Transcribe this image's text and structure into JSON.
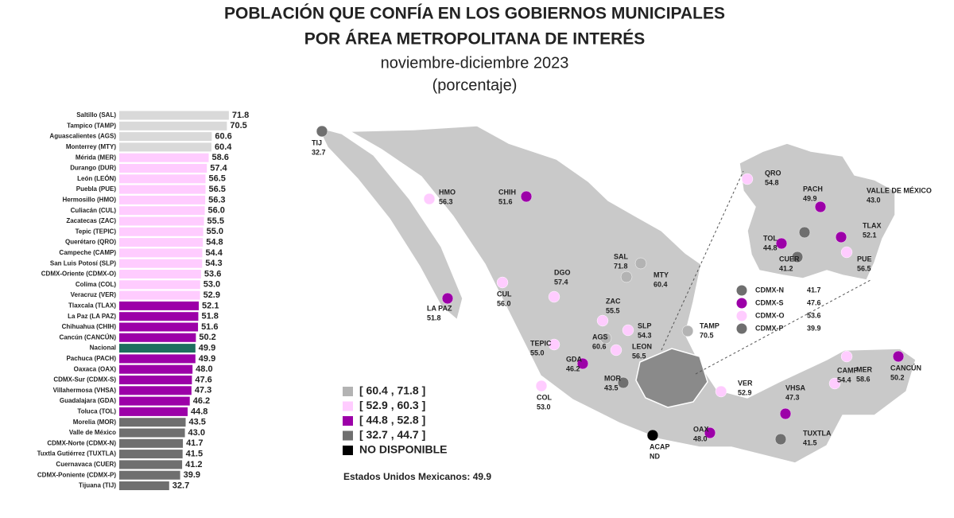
{
  "header": {
    "title_lines": [
      "POBLACIÓN QUE CONFÍA EN LOS GOBIERNOS MUNICIPALES",
      "POR ÁREA METROPOLITANA DE INTERÉS"
    ],
    "subtitle": "noviembre-diciembre 2023",
    "unit": "(porcentaje)"
  },
  "chart_data": [
    {
      "type": "bar",
      "orientation": "horizontal",
      "categories": [
        "Saltillo (SAL)",
        "Tampico (TAMP)",
        "Aguascalientes (AGS)",
        "Monterrey (MTY)",
        "Mérida (MER)",
        "Durango (DUR)",
        "León (LEÓN)",
        "Puebla (PUE)",
        "Hermosillo (HMO)",
        "Culiacán (CUL)",
        "Zacatecas (ZAC)",
        "Tepic (TEPIC)",
        "Querétaro (QRO)",
        "Campeche (CAMP)",
        "San Luis Potosí (SLP)",
        "CDMX-Oriente (CDMX-O)",
        "Colima (COL)",
        "Veracruz (VER)",
        "Tlaxcala (TLAX)",
        "La Paz (LA PAZ)",
        "Chihuahua (CHIH)",
        "Cancún (CANCÚN)",
        "Nacional",
        "Pachuca (PACH)",
        "Oaxaca (OAX)",
        "CDMX-Sur (CDMX-S)",
        "Villahermosa (VHSA)",
        "Guadalajara (GDA)",
        "Toluca (TOL)",
        "Morelia (MOR)",
        "Valle de México",
        "CDMX-Norte (CDMX-N)",
        "Tuxtla Gutiérrez (TUXTLA)",
        "Cuernavaca (CUER)",
        "CDMX-Poniente (CDMX-P)",
        "Tijuana (TIJ)"
      ],
      "values": [
        71.8,
        70.5,
        60.6,
        60.4,
        58.6,
        57.4,
        56.5,
        56.5,
        56.3,
        56.0,
        55.5,
        55.0,
        54.8,
        54.4,
        54.3,
        53.6,
        53.0,
        52.9,
        52.1,
        51.8,
        51.6,
        50.2,
        49.9,
        49.9,
        48.0,
        47.6,
        47.3,
        46.2,
        44.8,
        43.5,
        43.0,
        41.7,
        41.5,
        41.2,
        39.9,
        32.7
      ],
      "value_labels": [
        "71.8",
        "70.5",
        "60.6",
        "60.4",
        "58.6",
        "57.4",
        "56.5",
        "56.5",
        "56.3",
        "56.0",
        "55.5",
        "55.0",
        "54.8",
        "54.4",
        "54.3",
        "53.6",
        "53.0",
        "52.9",
        "52.1",
        "51.8",
        "51.6",
        "50.2",
        "49.9",
        "49.9",
        "48.0",
        "47.6",
        "47.3",
        "46.2",
        "44.8",
        "43.5",
        "43.0",
        "41.7",
        "41.5",
        "41.2",
        "39.9",
        "32.7"
      ],
      "colors": [
        "#d9d9d9",
        "#d9d9d9",
        "#d9d9d9",
        "#d9d9d9",
        "#ffccff",
        "#ffccff",
        "#ffccff",
        "#ffccff",
        "#ffccff",
        "#ffccff",
        "#ffccff",
        "#ffccff",
        "#ffccff",
        "#ffccff",
        "#ffccff",
        "#ffccff",
        "#ffccff",
        "#ffccff",
        "#9c00a8",
        "#9c00a8",
        "#9c00a8",
        "#9c00a8",
        "#1e6e5e",
        "#9c00a8",
        "#9c00a8",
        "#9c00a8",
        "#9c00a8",
        "#9c00a8",
        "#9c00a8",
        "#6f6f6f",
        "#6f6f6f",
        "#6f6f6f",
        "#6f6f6f",
        "#6f6f6f",
        "#6f6f6f",
        "#6f6f6f"
      ]
    },
    {
      "type": "map",
      "points": [
        {
          "name": "TIJ",
          "value": 32.7,
          "value_label": "32.7",
          "color": "#6f6f6f"
        },
        {
          "name": "HMO",
          "value": 56.3,
          "value_label": "56.3",
          "color": "#ffccff"
        },
        {
          "name": "CHIH",
          "value": 51.6,
          "value_label": "51.6",
          "color": "#9c00a8"
        },
        {
          "name": "LA PAZ",
          "value": 51.8,
          "value_label": "51.8",
          "color": "#9c00a8"
        },
        {
          "name": "CUL",
          "value": 56.0,
          "value_label": "56.0",
          "color": "#ffccff"
        },
        {
          "name": "DGO",
          "value": 57.4,
          "value_label": "57.4",
          "color": "#ffccff"
        },
        {
          "name": "SAL",
          "value": 71.8,
          "value_label": "71.8",
          "color": "#b3b3b3"
        },
        {
          "name": "MTY",
          "value": 60.4,
          "value_label": "60.4",
          "color": "#b3b3b3"
        },
        {
          "name": "ZAC",
          "value": 55.5,
          "value_label": "55.5",
          "color": "#ffccff"
        },
        {
          "name": "SLP",
          "value": 54.3,
          "value_label": "54.3",
          "color": "#ffccff"
        },
        {
          "name": "TAMP",
          "value": 70.5,
          "value_label": "70.5",
          "color": "#b3b3b3"
        },
        {
          "name": "TEPIC",
          "value": 55.0,
          "value_label": "55.0",
          "color": "#ffccff"
        },
        {
          "name": "AGS",
          "value": 60.6,
          "value_label": "60.6",
          "color": "#b3b3b3"
        },
        {
          "name": "LEON",
          "value": 56.5,
          "value_label": "56.5",
          "color": "#ffccff"
        },
        {
          "name": "GDA",
          "value": 46.2,
          "value_label": "46.2",
          "color": "#9c00a8"
        },
        {
          "name": "MOR",
          "value": 43.5,
          "value_label": "43.5",
          "color": "#6f6f6f"
        },
        {
          "name": "COL",
          "value": 53.0,
          "value_label": "53.0",
          "color": "#ffccff"
        },
        {
          "name": "ACAP",
          "value": null,
          "value_label": "ND",
          "color": "#000000"
        },
        {
          "name": "OAX",
          "value": 48.0,
          "value_label": "48.0",
          "color": "#9c00a8"
        },
        {
          "name": "VER",
          "value": 52.9,
          "value_label": "52.9",
          "color": "#ffccff"
        },
        {
          "name": "VHSA",
          "value": 47.3,
          "value_label": "47.3",
          "color": "#9c00a8"
        },
        {
          "name": "TUXTLA",
          "value": 41.5,
          "value_label": "41.5",
          "color": "#6f6f6f"
        },
        {
          "name": "CAMP",
          "value": 54.4,
          "value_label": "54.4",
          "color": "#ffccff"
        },
        {
          "name": "MER",
          "value": 58.6,
          "value_label": "58.6",
          "color": "#ffccff"
        },
        {
          "name": "CANCÚN",
          "value": 50.2,
          "value_label": "50.2",
          "color": "#9c00a8"
        },
        {
          "name": "QRO",
          "value": 54.8,
          "value_label": "54.8",
          "color": "#ffccff"
        },
        {
          "name": "PACH",
          "value": 49.9,
          "value_label": "49.9",
          "color": "#9c00a8"
        },
        {
          "name": "VALLE DE MÉXICO",
          "value": 43.0,
          "value_label": "43.0",
          "color": "#6f6f6f"
        },
        {
          "name": "TLAX",
          "value": 52.1,
          "value_label": "52.1",
          "color": "#9c00a8"
        },
        {
          "name": "TOL",
          "value": 44.8,
          "value_label": "44.8",
          "color": "#9c00a8"
        },
        {
          "name": "PUE",
          "value": 56.5,
          "value_label": "56.5",
          "color": "#ffccff"
        },
        {
          "name": "CUER",
          "value": 41.2,
          "value_label": "41.2",
          "color": "#6f6f6f"
        }
      ],
      "cdmx": [
        {
          "name": "CDMX-N",
          "value": 41.7,
          "color": "#6f6f6f"
        },
        {
          "name": "CDMX-S",
          "value": 47.6,
          "color": "#9c00a8"
        },
        {
          "name": "CDMX-O",
          "value": 53.6,
          "color": "#ffccff"
        },
        {
          "name": "CDMX-P",
          "value": 39.9,
          "color": "#6f6f6f"
        }
      ],
      "legend": [
        {
          "label": "[ 60.4 , 71.8 ]",
          "color": "#b3b3b3"
        },
        {
          "label": "[ 52.9 , 60.3 ]",
          "color": "#ffccff"
        },
        {
          "label": "[ 44.8 , 52.8 ]",
          "color": "#9c00a8"
        },
        {
          "label": "[ 32.7 , 44.7 ]",
          "color": "#6f6f6f"
        },
        {
          "label": "NO DISPONIBLE",
          "color": "#000000"
        }
      ],
      "note": "Estados Unidos Mexicanos: 49.9"
    }
  ]
}
